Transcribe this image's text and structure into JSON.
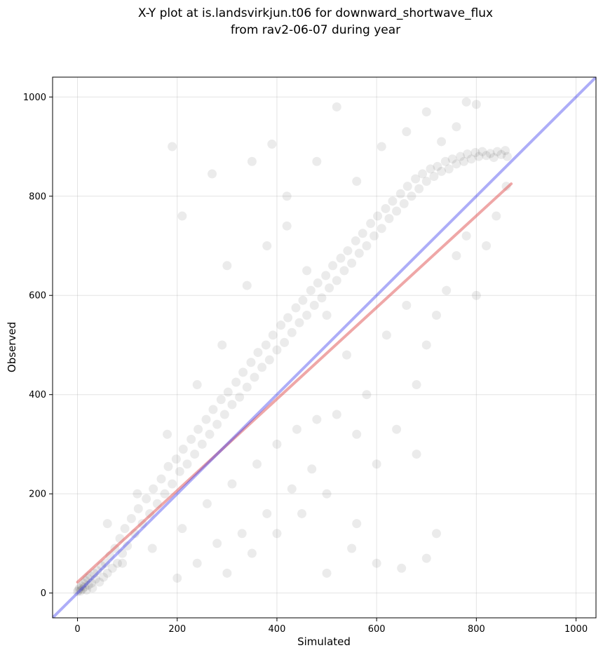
{
  "chart_data": {
    "type": "scatter",
    "title_lines": [
      "X-Y plot at is.landsvirkjun.t06 for downward_shortwave_flux",
      "from rav2-06-07 during year"
    ],
    "xlabel": "Simulated",
    "ylabel": "Observed",
    "xlim": [
      -50,
      1040
    ],
    "ylim": [
      -50,
      1040
    ],
    "xticks": [
      0,
      200,
      400,
      600,
      800,
      1000
    ],
    "yticks": [
      0,
      200,
      400,
      600,
      800,
      1000
    ],
    "grid": true,
    "point_color": "#000000",
    "point_alpha": 0.08,
    "scatter_points": [
      [
        0,
        3
      ],
      [
        2,
        6
      ],
      [
        4,
        10
      ],
      [
        6,
        4
      ],
      [
        8,
        14
      ],
      [
        10,
        8
      ],
      [
        12,
        20
      ],
      [
        14,
        12
      ],
      [
        16,
        25
      ],
      [
        18,
        6
      ],
      [
        20,
        30
      ],
      [
        22,
        16
      ],
      [
        25,
        35
      ],
      [
        28,
        20
      ],
      [
        30,
        10
      ],
      [
        33,
        40
      ],
      [
        36,
        28
      ],
      [
        40,
        45
      ],
      [
        44,
        22
      ],
      [
        48,
        55
      ],
      [
        52,
        32
      ],
      [
        56,
        60
      ],
      [
        60,
        40
      ],
      [
        65,
        75
      ],
      [
        70,
        50
      ],
      [
        75,
        90
      ],
      [
        80,
        60
      ],
      [
        85,
        110
      ],
      [
        90,
        80
      ],
      [
        95,
        130
      ],
      [
        100,
        95
      ],
      [
        108,
        150
      ],
      [
        115,
        120
      ],
      [
        122,
        170
      ],
      [
        130,
        140
      ],
      [
        138,
        190
      ],
      [
        145,
        160
      ],
      [
        152,
        210
      ],
      [
        160,
        180
      ],
      [
        168,
        230
      ],
      [
        175,
        200
      ],
      [
        182,
        255
      ],
      [
        190,
        220
      ],
      [
        198,
        270
      ],
      [
        205,
        245
      ],
      [
        212,
        290
      ],
      [
        220,
        260
      ],
      [
        228,
        310
      ],
      [
        235,
        280
      ],
      [
        242,
        330
      ],
      [
        250,
        300
      ],
      [
        258,
        350
      ],
      [
        265,
        320
      ],
      [
        272,
        370
      ],
      [
        280,
        340
      ],
      [
        288,
        390
      ],
      [
        295,
        360
      ],
      [
        302,
        405
      ],
      [
        310,
        380
      ],
      [
        318,
        425
      ],
      [
        325,
        395
      ],
      [
        332,
        445
      ],
      [
        340,
        415
      ],
      [
        348,
        465
      ],
      [
        355,
        435
      ],
      [
        362,
        485
      ],
      [
        370,
        455
      ],
      [
        378,
        500
      ],
      [
        385,
        470
      ],
      [
        392,
        520
      ],
      [
        400,
        490
      ],
      [
        408,
        540
      ],
      [
        415,
        505
      ],
      [
        422,
        555
      ],
      [
        430,
        525
      ],
      [
        438,
        575
      ],
      [
        445,
        545
      ],
      [
        452,
        590
      ],
      [
        460,
        560
      ],
      [
        468,
        610
      ],
      [
        475,
        580
      ],
      [
        482,
        625
      ],
      [
        490,
        595
      ],
      [
        498,
        640
      ],
      [
        505,
        615
      ],
      [
        512,
        660
      ],
      [
        520,
        630
      ],
      [
        528,
        675
      ],
      [
        535,
        650
      ],
      [
        542,
        690
      ],
      [
        550,
        665
      ],
      [
        558,
        710
      ],
      [
        565,
        685
      ],
      [
        572,
        725
      ],
      [
        580,
        700
      ],
      [
        588,
        745
      ],
      [
        595,
        720
      ],
      [
        602,
        760
      ],
      [
        610,
        735
      ],
      [
        618,
        775
      ],
      [
        625,
        755
      ],
      [
        632,
        790
      ],
      [
        640,
        770
      ],
      [
        648,
        805
      ],
      [
        655,
        785
      ],
      [
        662,
        820
      ],
      [
        670,
        800
      ],
      [
        678,
        835
      ],
      [
        685,
        815
      ],
      [
        692,
        845
      ],
      [
        700,
        830
      ],
      [
        708,
        855
      ],
      [
        715,
        840
      ],
      [
        722,
        860
      ],
      [
        730,
        850
      ],
      [
        738,
        870
      ],
      [
        745,
        855
      ],
      [
        752,
        875
      ],
      [
        760,
        865
      ],
      [
        768,
        880
      ],
      [
        775,
        870
      ],
      [
        782,
        885
      ],
      [
        790,
        875
      ],
      [
        798,
        888
      ],
      [
        805,
        880
      ],
      [
        812,
        890
      ],
      [
        820,
        882
      ],
      [
        828,
        886
      ],
      [
        835,
        878
      ],
      [
        842,
        890
      ],
      [
        850,
        884
      ],
      [
        858,
        892
      ],
      [
        862,
        880
      ],
      [
        60,
        140
      ],
      [
        90,
        60
      ],
      [
        120,
        200
      ],
      [
        150,
        90
      ],
      [
        180,
        320
      ],
      [
        210,
        130
      ],
      [
        240,
        420
      ],
      [
        260,
        180
      ],
      [
        290,
        500
      ],
      [
        310,
        220
      ],
      [
        340,
        620
      ],
      [
        360,
        260
      ],
      [
        380,
        700
      ],
      [
        400,
        300
      ],
      [
        420,
        740
      ],
      [
        440,
        330
      ],
      [
        460,
        650
      ],
      [
        480,
        350
      ],
      [
        500,
        560
      ],
      [
        520,
        360
      ],
      [
        540,
        480
      ],
      [
        560,
        320
      ],
      [
        580,
        400
      ],
      [
        600,
        260
      ],
      [
        620,
        520
      ],
      [
        640,
        330
      ],
      [
        660,
        580
      ],
      [
        680,
        420
      ],
      [
        700,
        500
      ],
      [
        720,
        560
      ],
      [
        740,
        610
      ],
      [
        760,
        680
      ],
      [
        780,
        720
      ],
      [
        800,
        600
      ],
      [
        820,
        700
      ],
      [
        840,
        760
      ],
      [
        860,
        820
      ],
      [
        200,
        30
      ],
      [
        240,
        60
      ],
      [
        300,
        40
      ],
      [
        350,
        80
      ],
      [
        400,
        120
      ],
      [
        450,
        160
      ],
      [
        500,
        40
      ],
      [
        550,
        90
      ],
      [
        600,
        60
      ],
      [
        650,
        50
      ],
      [
        700,
        70
      ],
      [
        680,
        280
      ],
      [
        720,
        120
      ],
      [
        560,
        140
      ],
      [
        500,
        200
      ],
      [
        430,
        210
      ],
      [
        470,
        250
      ],
      [
        380,
        160
      ],
      [
        330,
        120
      ],
      [
        280,
        100
      ],
      [
        190,
        900
      ],
      [
        390,
        905
      ],
      [
        520,
        980
      ],
      [
        780,
        990
      ],
      [
        800,
        985
      ],
      [
        700,
        970
      ],
      [
        420,
        800
      ],
      [
        300,
        660
      ],
      [
        210,
        760
      ],
      [
        350,
        870
      ],
      [
        270,
        845
      ],
      [
        480,
        870
      ],
      [
        560,
        830
      ],
      [
        610,
        900
      ],
      [
        660,
        930
      ],
      [
        760,
        940
      ],
      [
        730,
        910
      ]
    ],
    "series": [
      {
        "kind": "fit",
        "color": "#e05050",
        "alpha": 0.5,
        "x": [
          0,
          870
        ],
        "y": [
          22,
          825
        ]
      },
      {
        "kind": "one_to_one",
        "color": "#3333ee",
        "alpha": 0.4,
        "x": [
          -50,
          1040
        ],
        "y": [
          -50,
          1040
        ]
      }
    ]
  }
}
